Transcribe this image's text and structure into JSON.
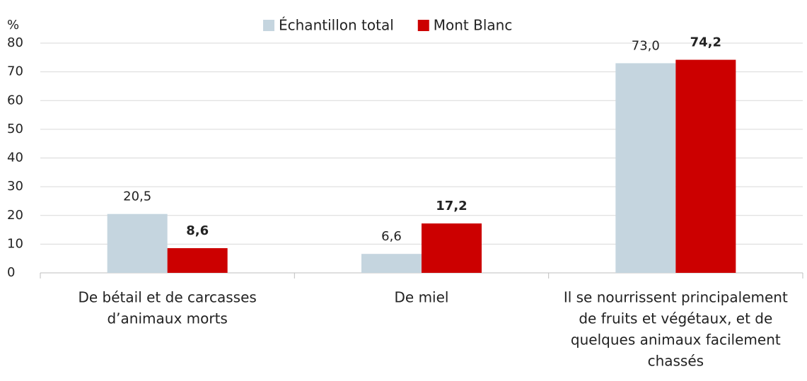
{
  "chart_data": {
    "type": "bar",
    "y_label": "%",
    "categories": [
      [
        "De bétail  et de carcasses",
        "d’animaux morts"
      ],
      [
        "De miel"
      ],
      [
        "Il se nourrissent principalement",
        "de fruits et végétaux, et de",
        "quelques animaux facilement",
        "chassés"
      ]
    ],
    "series": [
      {
        "name": "Échantillon total",
        "color": "#c5d5df",
        "values": [
          20.5,
          6.6,
          73.0
        ],
        "value_labels": [
          "20,5",
          "6,6",
          "73,0"
        ]
      },
      {
        "name": "Mont Blanc",
        "color": "#cc0000",
        "values": [
          8.6,
          17.2,
          74.2
        ],
        "value_labels": [
          "8,6",
          "17,2",
          "74,2"
        ]
      }
    ],
    "ylim": [
      0,
      80
    ],
    "yticks": [
      0,
      10,
      20,
      30,
      40,
      50,
      60,
      70,
      80
    ],
    "grid": true,
    "legend": "top"
  }
}
